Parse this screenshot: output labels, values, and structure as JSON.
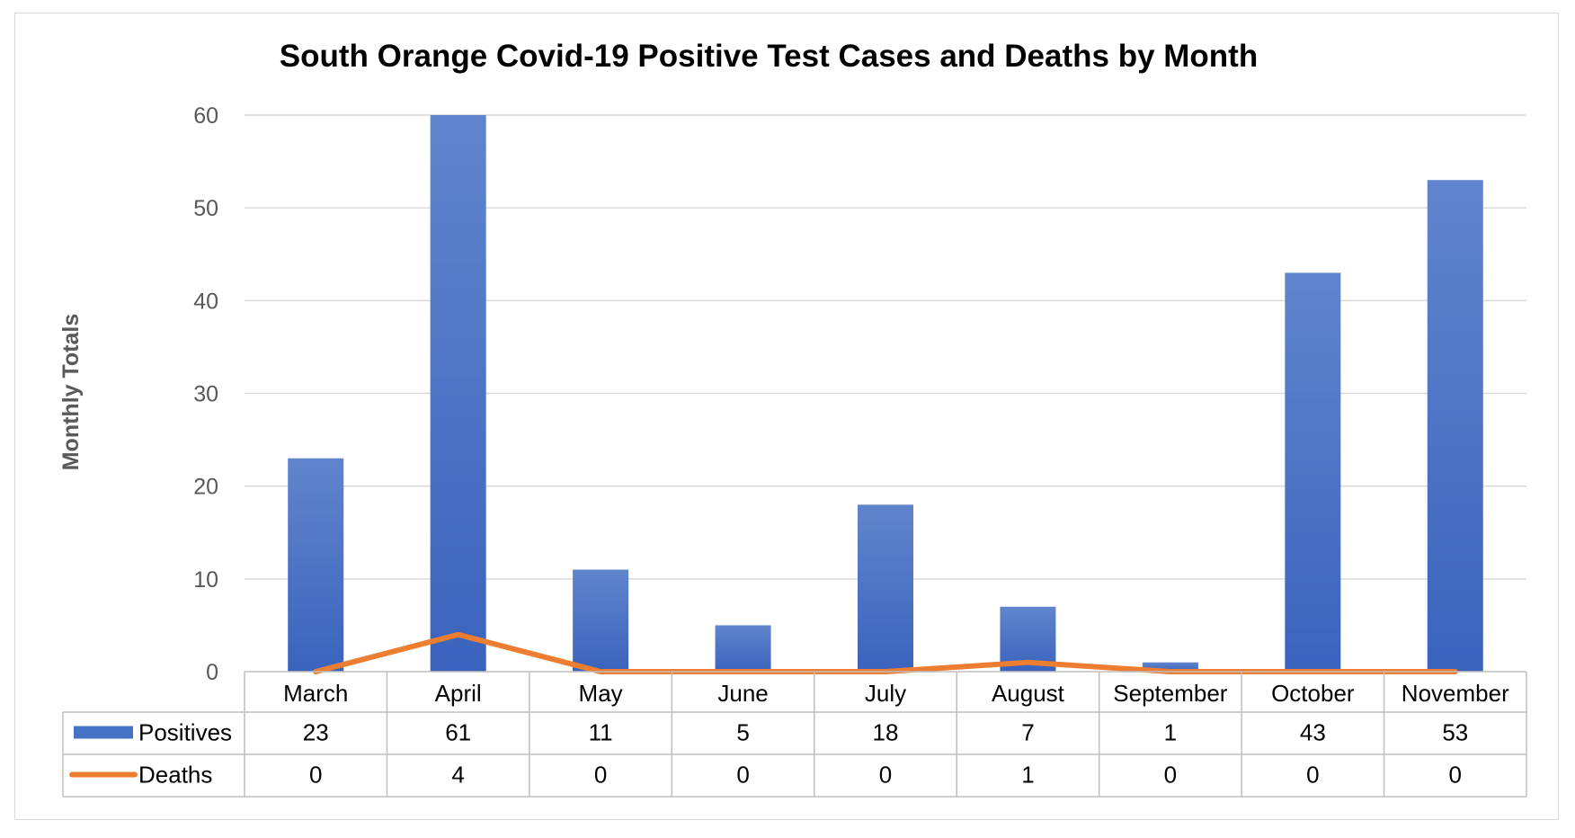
{
  "chart_data": {
    "type": "bar",
    "title": "South Orange Covid-19 Positive Test Cases and Deaths by Month",
    "ylabel": "Monthly Totals",
    "xlabel": "",
    "ylim": [
      0,
      60
    ],
    "yticks": [
      0,
      10,
      20,
      30,
      40,
      50,
      60
    ],
    "grid": true,
    "legend": "data-table",
    "categories": [
      "March",
      "April",
      "May",
      "June",
      "July",
      "August",
      "September",
      "October",
      "November"
    ],
    "series": [
      {
        "name": "Positives",
        "type": "bar",
        "color": "#4472c4",
        "values": [
          23,
          61,
          11,
          5,
          18,
          7,
          1,
          43,
          53
        ]
      },
      {
        "name": "Deaths",
        "type": "line",
        "color": "#ed7d31",
        "values": [
          0,
          4,
          0,
          0,
          0,
          1,
          0,
          0,
          0
        ]
      }
    ]
  }
}
